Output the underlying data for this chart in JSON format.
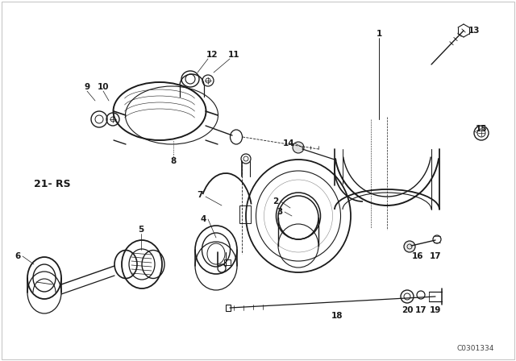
{
  "bg_color": "#ffffff",
  "line_color": "#1a1a1a",
  "watermark": "C0301334",
  "label_21rs": "21- RS",
  "figsize": [
    6.4,
    4.48
  ],
  "dpi": 100,
  "border_color": "#cccccc"
}
